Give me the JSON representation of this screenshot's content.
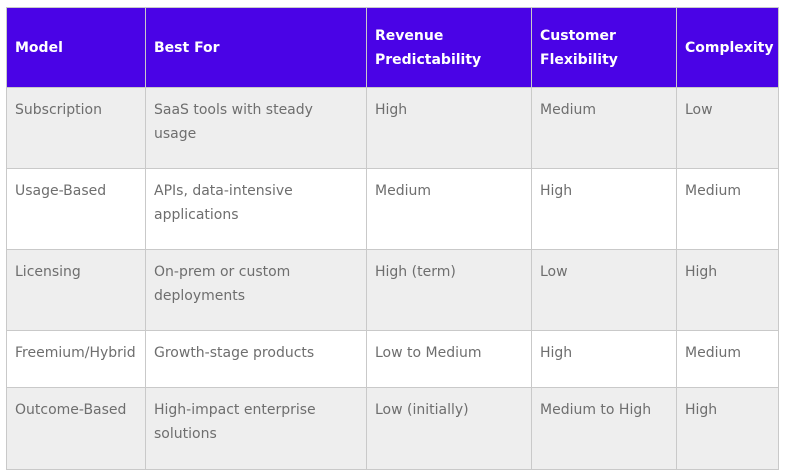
{
  "table": {
    "headers": [
      "Model",
      "Best For",
      "Revenue Predictability",
      "Customer Flexibility",
      "Complexity"
    ],
    "rows": [
      [
        "Subscription",
        "SaaS tools with steady usage",
        "High",
        "Medium",
        "Low"
      ],
      [
        "Usage-Based",
        "APIs, data-intensive applications",
        "Medium",
        "High",
        "Medium"
      ],
      [
        "Licensing",
        "On-prem or custom deployments",
        "High (term)",
        "Low",
        "High"
      ],
      [
        "Freemium/Hybrid",
        "Growth-stage products",
        "Low to Medium",
        "High",
        "Medium"
      ],
      [
        "Outcome-Based",
        "High-impact enterprise solutions",
        "Low (initially)",
        "Medium to High",
        "High"
      ]
    ]
  },
  "colors": {
    "header_bg": "#4a03e6",
    "header_text": "#ffffff",
    "row_alt_bg": "#eeeeee",
    "cell_text": "#6e6e6e",
    "border": "#c9c9c9"
  }
}
